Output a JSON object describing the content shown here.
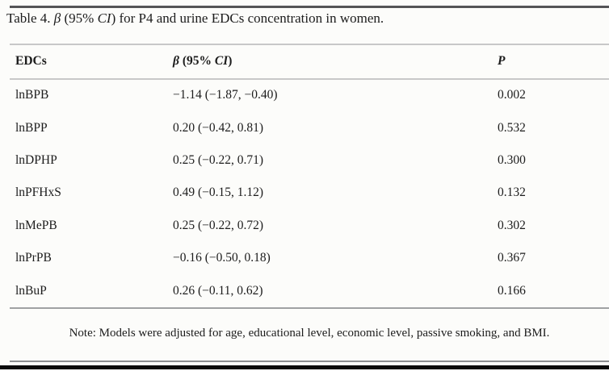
{
  "title": {
    "prefix": "Table 4. ",
    "beta_symbol": "β",
    "mid": " (95% ",
    "ci": "CI",
    "suffix": ") for P4 and urine EDCs concentration in women."
  },
  "header": {
    "edcs": "EDCs",
    "beta": {
      "symbol": "β",
      "mid": " (95% ",
      "ci": "CI",
      "close": ")"
    },
    "p": "P"
  },
  "table": {
    "rows": [
      {
        "edc": "lnBPB",
        "beta_ci": "−1.14 (−1.87, −0.40)",
        "p": "0.002"
      },
      {
        "edc": "lnBPP",
        "beta_ci": "0.20 (−0.42, 0.81)",
        "p": "0.532"
      },
      {
        "edc": "lnDPHP",
        "beta_ci": "0.25 (−0.22, 0.71)",
        "p": "0.300"
      },
      {
        "edc": "lnPFHxS",
        "beta_ci": "0.49 (−0.15, 1.12)",
        "p": "0.132"
      },
      {
        "edc": "lnMePB",
        "beta_ci": "0.25 (−0.22, 0.72)",
        "p": "0.302"
      },
      {
        "edc": "lnPrPB",
        "beta_ci": "−0.16 (−0.50, 0.18)",
        "p": "0.367"
      },
      {
        "edc": "lnBuP",
        "beta_ci": "0.26 (−0.11, 0.62)",
        "p": "0.166"
      }
    ]
  },
  "note": {
    "text": "Note: Models were adjusted for age, educational level, economic level, passive smoking, and BMI."
  },
  "colors": {
    "text": "#1c1c1c",
    "background": "#fcfcfa",
    "rule_dark": "#545456",
    "rule_light": "#c8c8c8",
    "rule_medium": "#9fa1a3",
    "rule_note": "#8d8f91",
    "rule_black": "#0b0b0b"
  }
}
